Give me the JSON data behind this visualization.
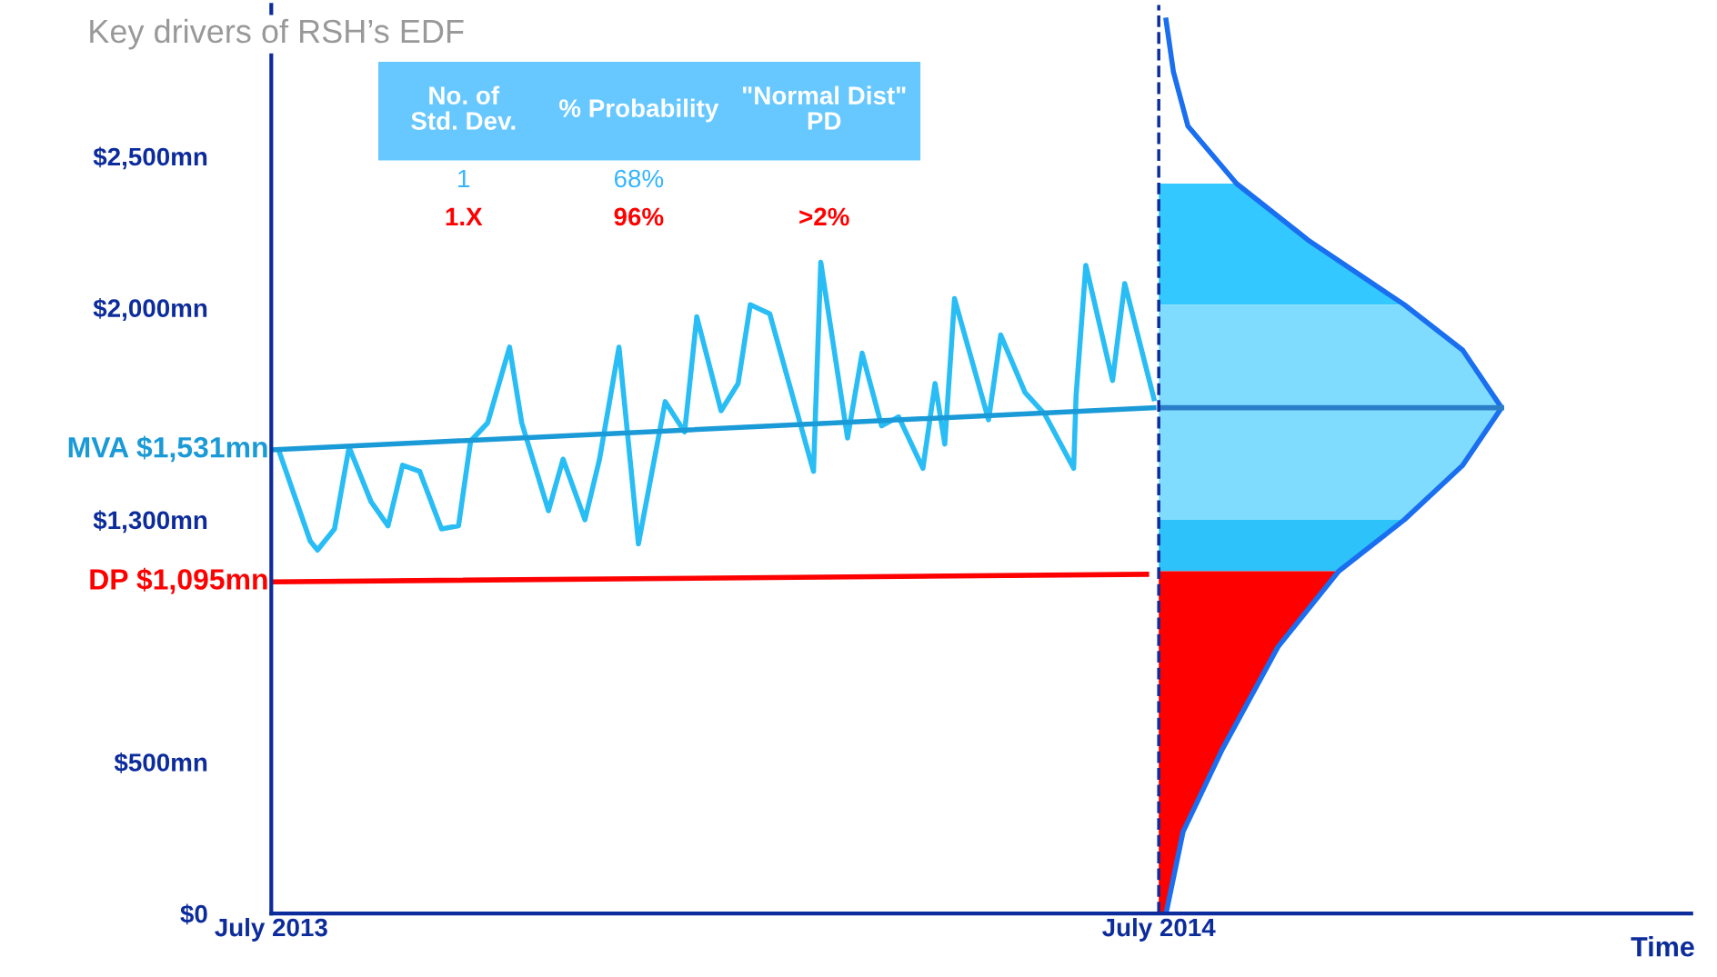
{
  "chart_data": {
    "type": "line",
    "title": "Key drivers of RSH’s EDF",
    "xlabel": "Time",
    "xlim": [
      "2013-07-01",
      "2015-02-05"
    ],
    "ylim": [
      0,
      3000
    ],
    "xticks": [
      {
        "value": "2013-07-01",
        "label": "July 2013"
      },
      {
        "value": "2014-07-01",
        "label": "July 2014"
      }
    ],
    "yticks": [
      {
        "value": 0,
        "label": "$0"
      },
      {
        "value": 500,
        "label": "$500mn"
      },
      {
        "value": 1300,
        "label": "$1,300mn"
      },
      {
        "value": 2000,
        "label": "$2,000mn"
      },
      {
        "value": 2500,
        "label": "$2,500mn"
      }
    ],
    "grid": false,
    "legend": false,
    "ref_lines": [
      {
        "axis": "x",
        "value": "2014-07-01",
        "color": "#0d2c9c",
        "line_style": "dashed"
      }
    ],
    "annotations": [
      "No. of\nStd. Dev.",
      "% Probability",
      "\"Normal Dist\"\nPD",
      "1",
      "68%",
      "1.X",
      "96%",
      ">2%"
    ],
    "series": [
      {
        "type": "area",
        "color": "#33c8ff",
        "x": [
          "2014-07-01",
          "2014-08-02",
          "2014-09-01",
          "2014-10-10",
          "2014-07-01"
        ],
        "values": [
          2410,
          2410,
          2220,
          2010,
          2010
        ]
      },
      {
        "type": "area",
        "color": "#80dcff",
        "x": [
          "2014-07-01",
          "2014-10-10",
          "2014-11-03",
          "2014-11-19",
          "2014-11-03",
          "2014-10-10",
          "2014-07-01"
        ],
        "values": [
          2010,
          2010,
          1860,
          1670,
          1480,
          1300,
          1300
        ]
      },
      {
        "type": "area",
        "color": "#2ec2fa",
        "x": [
          "2014-07-01",
          "2014-10-10",
          "2014-09-13",
          "2014-07-01"
        ],
        "values": [
          1300,
          1300,
          1130,
          1130
        ]
      },
      {
        "type": "area",
        "color": "#ff0000",
        "x": [
          "2014-07-01",
          "2014-09-13",
          "2014-08-19",
          "2014-07-27",
          "2014-07-11",
          "2014-07-04",
          "2014-07-01"
        ],
        "values": [
          1130,
          1130,
          880,
          540,
          270,
          0,
          0
        ]
      },
      {
        "color": "#1a6ef0",
        "x": [
          "2014-07-04",
          "2014-07-07",
          "2014-07-13",
          "2014-08-02",
          "2014-09-01",
          "2014-10-10",
          "2014-11-03",
          "2014-11-19",
          "2014-11-03",
          "2014-10-10",
          "2014-09-13",
          "2014-08-19",
          "2014-07-27",
          "2014-07-11",
          "2014-07-04"
        ],
        "values": [
          2950,
          2780,
          2600,
          2410,
          2220,
          2010,
          1860,
          1670,
          1480,
          1300,
          1130,
          880,
          540,
          270,
          0
        ]
      },
      {
        "color": "#2a7fc8",
        "x": [
          "2014-07-02",
          "2014-11-19"
        ],
        "values": [
          1670,
          1670
        ]
      },
      {
        "color": "#29bdf5",
        "x": [
          "2013-07-04",
          "2013-07-17",
          "2013-07-20",
          "2013-07-27",
          "2013-08-02",
          "2013-08-11",
          "2013-08-18",
          "2013-08-24",
          "2013-08-31",
          "2013-09-09",
          "2013-09-16",
          "2013-09-21",
          "2013-09-28",
          "2013-10-07",
          "2013-10-12",
          "2013-10-23",
          "2013-10-29",
          "2013-11-07",
          "2013-11-13",
          "2013-11-21",
          "2013-11-29",
          "2013-12-10",
          "2013-12-18",
          "2013-12-23",
          "2014-01-02",
          "2014-01-09",
          "2014-01-14",
          "2014-01-22",
          "2014-02-09",
          "2014-02-12",
          "2014-02-23",
          "2014-03-01",
          "2014-03-09",
          "2014-03-16",
          "2014-03-26",
          "2014-03-31",
          "2014-04-04",
          "2014-04-08",
          "2014-04-22",
          "2014-04-27",
          "2014-05-07",
          "2014-05-15",
          "2014-05-27",
          "2014-05-28",
          "2014-06-01",
          "2014-06-12",
          "2014-06-17",
          "2014-06-29"
        ],
        "values": [
          1531,
          1230,
          1200,
          1270,
          1540,
          1360,
          1280,
          1480,
          1460,
          1270,
          1280,
          1560,
          1620,
          1870,
          1620,
          1330,
          1500,
          1300,
          1500,
          1870,
          1220,
          1690,
          1590,
          1970,
          1660,
          1750,
          2010,
          1980,
          1460,
          2150,
          1570,
          1850,
          1610,
          1640,
          1470,
          1750,
          1550,
          2030,
          1630,
          1910,
          1720,
          1650,
          1470,
          1710,
          2140,
          1760,
          2080,
          1700
        ]
      },
      {
        "name": "MVA $1,531mn",
        "color": "#1a9ad6",
        "x": [
          "2013-07-01",
          "2014-06-29"
        ],
        "values": [
          1531,
          1670
        ]
      },
      {
        "name": "DP $1,095mn",
        "color": "#ff0000",
        "x": [
          "2013-07-01",
          "2014-06-26"
        ],
        "values": [
          1095,
          1120
        ]
      }
    ]
  }
}
